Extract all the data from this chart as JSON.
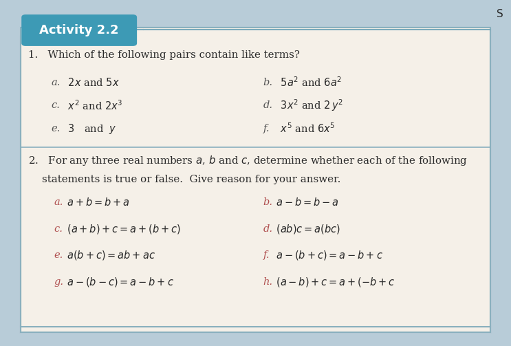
{
  "title": "Activity 2.2",
  "title_bg": "#3d9ab5",
  "title_text_color": "#ffffff",
  "bg_color": "#f5f0e8",
  "page_bg": "#b8ccd8",
  "border_color": "#7aaabb",
  "inner_border_color": "#8ab0be",
  "q1_header": "1.   Which of the following pairs contain like terms?",
  "q1_items_left": [
    [
      "a.",
      "   $2x$ and $5x$"
    ],
    [
      "c.",
      "   $x^2$ and $2x^3$"
    ],
    [
      "e.",
      "   $3$   and  $y$"
    ]
  ],
  "q1_items_right": [
    [
      "b.",
      "   $5a^2$ and $6a^2$"
    ],
    [
      "d.",
      "   $3x^2$ and $2\\,y^2$"
    ],
    [
      "f.",
      "   $x^5$ and $6x^5$"
    ]
  ],
  "q2_header1": "2.   For any three real numbers $a$, $b$ and $c$, determine whether each of the following",
  "q2_header2": "statements is true or false.  Give reason for your answer.",
  "q2_items_left": [
    [
      "a.",
      "  $a + b = b + a$"
    ],
    [
      "c.",
      "  $(a + b) + c = a + (b + c)$"
    ],
    [
      "e.",
      "  $a(b + c) = ab + ac$"
    ],
    [
      "g.",
      "  $a - (b - c) = a - b + c$"
    ]
  ],
  "q2_items_right": [
    [
      "b.",
      "  $a - b = b - a$"
    ],
    [
      "d.",
      "  $(ab)c = a(bc)$"
    ],
    [
      "f.",
      "  $a - (b + c) = a - b + c$"
    ],
    [
      "h.",
      "  $(a - b) + c = a + (-b + c$"
    ]
  ],
  "text_color": "#2a2a2a",
  "label_color_q1": "#555555",
  "label_color_q2": "#b05050",
  "font_size_header": 10.8,
  "font_size_item": 10.5,
  "font_size_title": 13.0,
  "page_number": "S"
}
